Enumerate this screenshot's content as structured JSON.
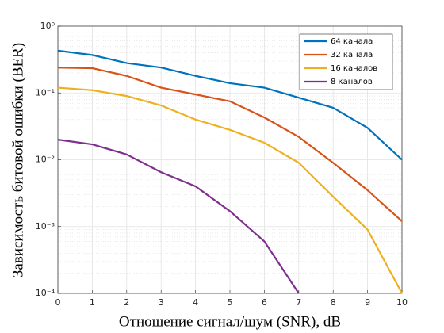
{
  "chart_data": {
    "type": "line",
    "xlabel": "Отношение сигнал/шум (SNR), dB",
    "ylabel": "Зависимость битовой ошибки (BER)",
    "x": [
      0,
      1,
      2,
      3,
      4,
      5,
      6,
      7,
      8,
      9,
      10
    ],
    "series": [
      {
        "name": "64 канала",
        "color": "#0072bd",
        "values": [
          0.43,
          0.37,
          0.28,
          0.24,
          0.18,
          0.14,
          0.12,
          0.085,
          0.06,
          0.03,
          0.01
        ]
      },
      {
        "name": "32 канала",
        "color": "#d95319",
        "values": [
          0.24,
          0.235,
          0.18,
          0.12,
          0.095,
          0.075,
          0.043,
          0.022,
          0.009,
          0.0035,
          0.0012
        ]
      },
      {
        "name": "16 каналов",
        "color": "#edb120",
        "values": [
          0.12,
          0.11,
          0.09,
          0.065,
          0.04,
          0.028,
          0.018,
          0.009,
          0.0028,
          0.0009,
          0.0001
        ]
      },
      {
        "name": "8 каналов",
        "color": "#7e2f8e",
        "values": [
          0.02,
          0.017,
          0.012,
          0.0065,
          0.004,
          0.0017,
          0.0006,
          0.0001,
          null,
          null,
          null
        ]
      }
    ],
    "xlim": [
      0,
      10
    ],
    "xticks": [
      0,
      1,
      2,
      3,
      4,
      5,
      6,
      7,
      8,
      9,
      10
    ],
    "ylim": [
      0.0001,
      1
    ],
    "ylog": true,
    "yticks": [
      {
        "value": 0.0001,
        "label": "10⁻⁴"
      },
      {
        "value": 0.001,
        "label": "10⁻³"
      },
      {
        "value": 0.01,
        "label": "10⁻²"
      },
      {
        "value": 0.1,
        "label": "10⁻¹"
      },
      {
        "value": 1,
        "label": "10⁰"
      }
    ],
    "grid": true,
    "minor_grid": true,
    "legend": "northeast"
  }
}
